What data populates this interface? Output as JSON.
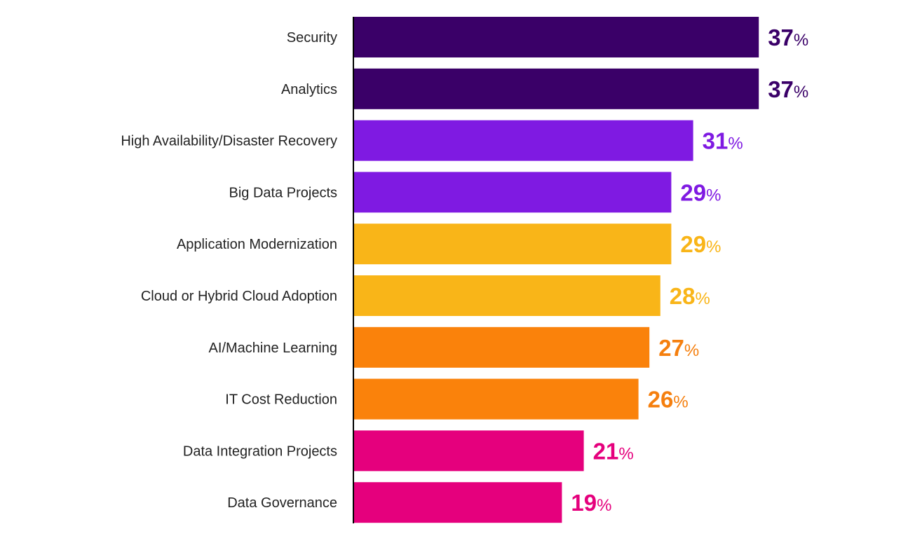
{
  "chart_data": {
    "type": "bar",
    "orientation": "horizontal",
    "categories": [
      "Security",
      "Analytics",
      "High Availability/Disaster Recovery",
      "Big Data Projects",
      "Application Modernization",
      "Cloud or Hybrid Cloud Adoption",
      "AI/Machine Learning",
      "IT Cost Reduction",
      "Data Integration Projects",
      "Data Governance"
    ],
    "values": [
      37,
      37,
      31,
      29,
      29,
      28,
      27,
      26,
      21,
      19
    ],
    "value_unit": "%",
    "colors": [
      "#3a0068",
      "#3a0068",
      "#7f1ae2",
      "#7f1ae2",
      "#f9b518",
      "#f9b518",
      "#fa820b",
      "#fa820b",
      "#e5007d",
      "#e5007d"
    ],
    "label_colors": [
      "#3a0068",
      "#3a0068",
      "#7f1ae2",
      "#7f1ae2",
      "#f9b518",
      "#f9b518",
      "#f57f0e",
      "#f57f0e",
      "#e5007d",
      "#e5007d"
    ],
    "title": "",
    "xlabel": "",
    "ylabel": "",
    "grid": false,
    "legend": "none"
  }
}
